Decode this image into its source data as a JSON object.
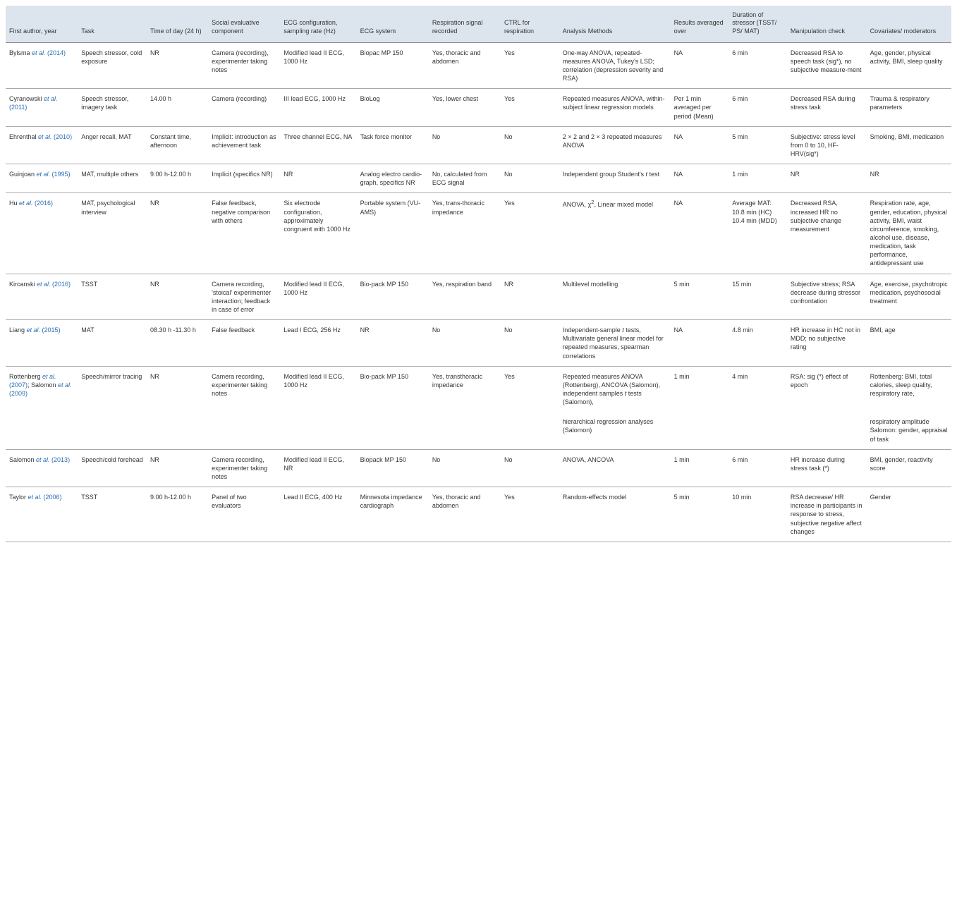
{
  "headers": [
    "First author, year",
    "Task",
    "Time of day (24 h)",
    "Social evaluative component",
    "ECG configuration, sampling rate (Hz)",
    "ECG system",
    "Respiration signal recorded",
    "CTRL for respiration",
    "Analysis Methods",
    "Results averaged over",
    "Duration of stressor (TSST/ PS/ MAT)",
    "Manipulation check",
    "Covariates/ moderators"
  ],
  "rows": [
    {
      "author_pre": "Bylsma ",
      "author_link": "et al.",
      "author_year": " (2014)",
      "c1": "Speech stressor, cold exposure",
      "c2": "NR",
      "c3": "Camera (recording), experimenter taking notes",
      "c4": "Modified lead II ECG, 1000 Hz",
      "c5": "Biopac MP 150",
      "c6": "Yes, thoracic and abdomen",
      "c7": "Yes",
      "c8": "One-way ANOVA, repeated-measures ANOVA, Tukey's LSD; correlation (depression severity and RSA)",
      "c9": "NA",
      "c10": "6 min",
      "c11": "Decreased RSA to speech task (sig*), no subjective measure-ment",
      "c12": "Age, gender, physical activity, BMI, sleep quality"
    },
    {
      "author_pre": "Cyranowski ",
      "author_link": "et al.",
      "author_year": " (2011)",
      "c1": "Speech stressor, imagery task",
      "c2": "14.00 h",
      "c3": "Camera (recording)",
      "c4": "III lead ECG, 1000 Hz",
      "c5": "BioLog",
      "c6": "Yes, lower chest",
      "c7": "Yes",
      "c8": "Repeated measures ANOVA, within-subject linear regression models",
      "c9": "Per 1 min averaged per period (Mean)",
      "c10": "6 min",
      "c11": "Decreased RSA during stress task",
      "c12": "Trauma & respiratory parameters"
    },
    {
      "author_pre": "Ehrenthal ",
      "author_link": "et al.",
      "author_year": " (2010)",
      "c1": "Anger recall, MAT",
      "c2": "Constant time, afternoon",
      "c3": "Implicit: introduction as achievement task",
      "c4": "Three channel ECG, NA",
      "c5": "Task force monitor",
      "c6": "No",
      "c7": "No",
      "c8": "2 × 2 and 2 × 3 repeated measures ANOVA",
      "c9": "NA",
      "c10": "5 min",
      "c11": "Subjective: stress level from 0 to 10, HF-HRV(sig*)",
      "c12": "Smoking, BMI, medication"
    },
    {
      "author_pre": "Guinjoan ",
      "author_link": "et al.",
      "author_year": " (1995)",
      "c1": "MAT, multiple others",
      "c2": "9.00 h-12.00 h",
      "c3": "Implicit (specifics NR)",
      "c4": "NR",
      "c5": "Analog electro cardio-graph, specifics NR",
      "c6": "No, calculated from ECG signal",
      "c7": "No",
      "c8_pre": "Independent group Student's ",
      "c8_it": "t",
      "c8_post": " test",
      "c9": "NA",
      "c10": "1 min",
      "c11": "NR",
      "c12": "NR"
    },
    {
      "author_pre": "Hu ",
      "author_link": "et al.",
      "author_year": " (2016)",
      "c1": "MAT, psychological interview",
      "c2": "NR",
      "c3": "False feedback, negative comparison with others",
      "c4": "Six electrode configuration, approximately congruent with 1000 Hz",
      "c5": "Portable system (VU-AMS)",
      "c6": "Yes, trans-thoracic impedance",
      "c7": "Yes",
      "c8_pre": "ANOVA, χ",
      "c8_sup": "2",
      "c8_post": ", Linear mixed model",
      "c9": "NA",
      "c10": "Average MAT: 10.8 min (HC) 10.4 min (MDD)",
      "c11": "Decreased RSA, increased HR no subjective change measurement",
      "c12": "Respiration rate, age, gender, education, physical activity, BMI, waist circumference, smoking, alcohol use, disease, medication, task performance, antidepressant use"
    },
    {
      "author_pre": "Kircanski ",
      "author_link": "et al.",
      "author_year": " (2016)",
      "c1": "TSST",
      "c2": "NR",
      "c3": "Camera recording, 'stoical' experimenter interaction; feedback in case of error",
      "c4": "Modified lead II ECG, 1000 Hz",
      "c5": "Bio-pack MP 150",
      "c6": "Yes, respiration band",
      "c7": "NR",
      "c8": "Multilevel modelling",
      "c9": "5 min",
      "c10": "15 min",
      "c11": "Subjective stress; RSA decrease during stressor confrontation",
      "c12": "Age, exercise, psychotropic medication, psychosocial treatment"
    },
    {
      "author_pre": "Liang ",
      "author_link": "et al.",
      "author_year": " (2015)",
      "c1": "MAT",
      "c2": "08.30 h -11.30 h",
      "c3": "False feedback",
      "c4": "Lead I ECG, 256 Hz",
      "c5": "NR",
      "c6": "No",
      "c7": "No",
      "c8_pre": "Independent-sample ",
      "c8_it": "t",
      "c8_post": " tests, Multivariate general linear model for repeated measures, spearman correlations",
      "c9": "NA",
      "c10": "4.8 min",
      "c11": "HR increase in HC not in MDD; no subjective rating",
      "c12": "BMI, age"
    },
    {
      "author_pre": "Rottenberg ",
      "author_link": "et al.",
      "author_year": " (2007)",
      "author_suf": "; Salomon ",
      "author_link2": "et al.",
      "author_year2": " (2009)",
      "c1": "Speech/mirror tracing",
      "c2": "NR",
      "c3": "Camera recording, experimenter taking notes",
      "c4": "Modified lead II ECG, 1000 Hz",
      "c5": "Bio-pack MP 150",
      "c6": "Yes, transthoracic impedance",
      "c7": "Yes",
      "c8_pre": "Repeated measures ANOVA (Rottenberg), ANCOVA (Salomon), independent samples ",
      "c8_it": "t",
      "c8_post": " tests (Salomon),",
      "c9": "1 min",
      "c10": "4 min",
      "c11": "RSA: sig (*) effect of epoch",
      "c12": "Rottenberg: BMI, total calories, sleep quality, respiratory rate,"
    },
    {
      "continuation": true,
      "c8": "hierarchical regression analyses (Salomon)",
      "c12": "respiratory amplitude Salomon: gender, appraisal of task"
    },
    {
      "author_pre": "Salomon ",
      "author_link": "et al.",
      "author_year": " (2013)",
      "c1": "Speech/cold forehead",
      "c2": "NR",
      "c3": "Camera recording, experimenter taking notes",
      "c4": "Modified lead II ECG, NR",
      "c5": "Biopack MP 150",
      "c6": "No",
      "c7": "No",
      "c8": "ANOVA, ANCOVA",
      "c9": "1 min",
      "c10": "6 min",
      "c11": "HR increase during stress task (*)",
      "c12": "BMI, gender, reactivity score"
    },
    {
      "author_pre": "Taylor ",
      "author_link": "et al.",
      "author_year": " (2006)",
      "c1": "TSST",
      "c2": "9.00 h-12.00 h",
      "c3": "Panel of two evaluators",
      "c4": "Lead II ECG, 400 Hz",
      "c5": "Minnesota impedance cardiograph",
      "c6": "Yes, thoracic and abdomen",
      "c7": "Yes",
      "c8": "Random-effects model",
      "c9": "5 min",
      "c10": "10 min",
      "c11": "RSA decrease/ HR increase in participants in response to stress, subjective negative affect changes",
      "c12": "Gender"
    }
  ]
}
